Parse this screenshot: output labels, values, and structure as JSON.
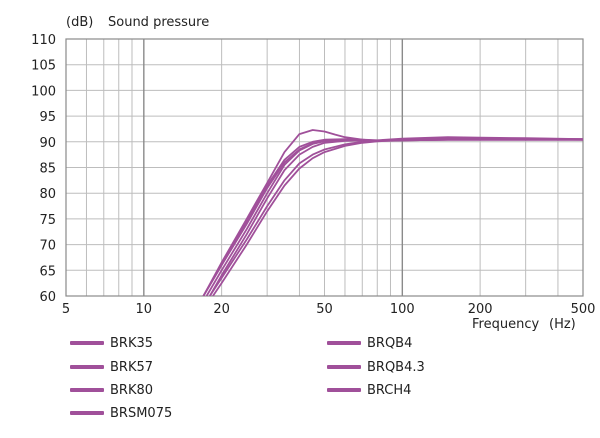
{
  "chart_data": {
    "type": "line",
    "xscale": "log",
    "xlim": [
      5,
      500
    ],
    "ylim": [
      60,
      110
    ],
    "ylabel_unit": "(dB)",
    "ylabel": "Sound pressure",
    "xlabel": "Frequency",
    "xlabel_unit": "(Hz)",
    "x_ticks": [
      5,
      10,
      20,
      50,
      100,
      200,
      500
    ],
    "y_ticks": [
      60,
      65,
      70,
      75,
      80,
      85,
      90,
      95,
      100,
      105,
      110
    ],
    "grid": true,
    "legend_placement": "bottom",
    "line_color": "#a0509a",
    "series": [
      {
        "name": "BRK35",
        "x": [
          17,
          20,
          25,
          30,
          35,
          40,
          45,
          50,
          60,
          70,
          80,
          100,
          150,
          200,
          300,
          500
        ],
        "y": [
          60,
          66,
          74,
          81,
          86,
          88.5,
          89.7,
          90.2,
          90.4,
          90.3,
          90.2,
          90.3,
          90.4,
          90.4,
          90.4,
          90.4
        ]
      },
      {
        "name": "BRK57",
        "x": [
          17.5,
          20,
          25,
          30,
          35,
          40,
          45,
          50,
          60,
          70,
          80,
          100,
          150,
          200,
          300,
          500
        ],
        "y": [
          60,
          65,
          73,
          80,
          85.5,
          88.3,
          89.6,
          90.1,
          90.3,
          90.3,
          90.2,
          90.3,
          90.4,
          90.4,
          90.4,
          90.4
        ]
      },
      {
        "name": "BRK80",
        "x": [
          18,
          20,
          25,
          30,
          35,
          40,
          45,
          50,
          60,
          70,
          80,
          100,
          150,
          200,
          300,
          500
        ],
        "y": [
          60,
          64,
          72,
          79,
          84.5,
          87.5,
          89,
          89.8,
          90.2,
          90.3,
          90.2,
          90.4,
          90.5,
          90.5,
          90.5,
          90.5
        ]
      },
      {
        "name": "BRSM075",
        "x": [
          18.5,
          20,
          25,
          30,
          35,
          40,
          45,
          50,
          60,
          70,
          80,
          100,
          150,
          200,
          300,
          500
        ],
        "y": [
          60,
          62.5,
          70,
          76.5,
          81.5,
          84.8,
          86.8,
          88,
          89.2,
          89.8,
          90.1,
          90.3,
          90.4,
          90.4,
          90.4,
          90.4
        ]
      },
      {
        "name": "BRQB4",
        "x": [
          17,
          20,
          25,
          30,
          35,
          40,
          45,
          50,
          55,
          60,
          70,
          80,
          100,
          150,
          200,
          300,
          500
        ],
        "y": [
          60,
          66.5,
          75,
          82,
          88,
          91.5,
          92.3,
          92,
          91.4,
          90.9,
          90.4,
          90.2,
          90.5,
          90.8,
          90.7,
          90.6,
          90.5
        ]
      },
      {
        "name": "BRQB4.3",
        "x": [
          17,
          20,
          25,
          30,
          35,
          40,
          45,
          50,
          60,
          70,
          80,
          100,
          150,
          200,
          300,
          500
        ],
        "y": [
          60,
          66,
          74.5,
          81.5,
          86.5,
          89,
          90,
          90.4,
          90.5,
          90.4,
          90.3,
          90.6,
          90.9,
          90.8,
          90.7,
          90.5
        ]
      },
      {
        "name": "BRCH4",
        "x": [
          18,
          20,
          25,
          30,
          35,
          40,
          45,
          50,
          60,
          70,
          80,
          100,
          150,
          200,
          300,
          500
        ],
        "y": [
          60,
          63.5,
          71,
          77.5,
          82.5,
          85.8,
          87.5,
          88.5,
          89.5,
          90,
          90.2,
          90.4,
          90.5,
          90.5,
          90.5,
          90.4
        ]
      }
    ]
  }
}
